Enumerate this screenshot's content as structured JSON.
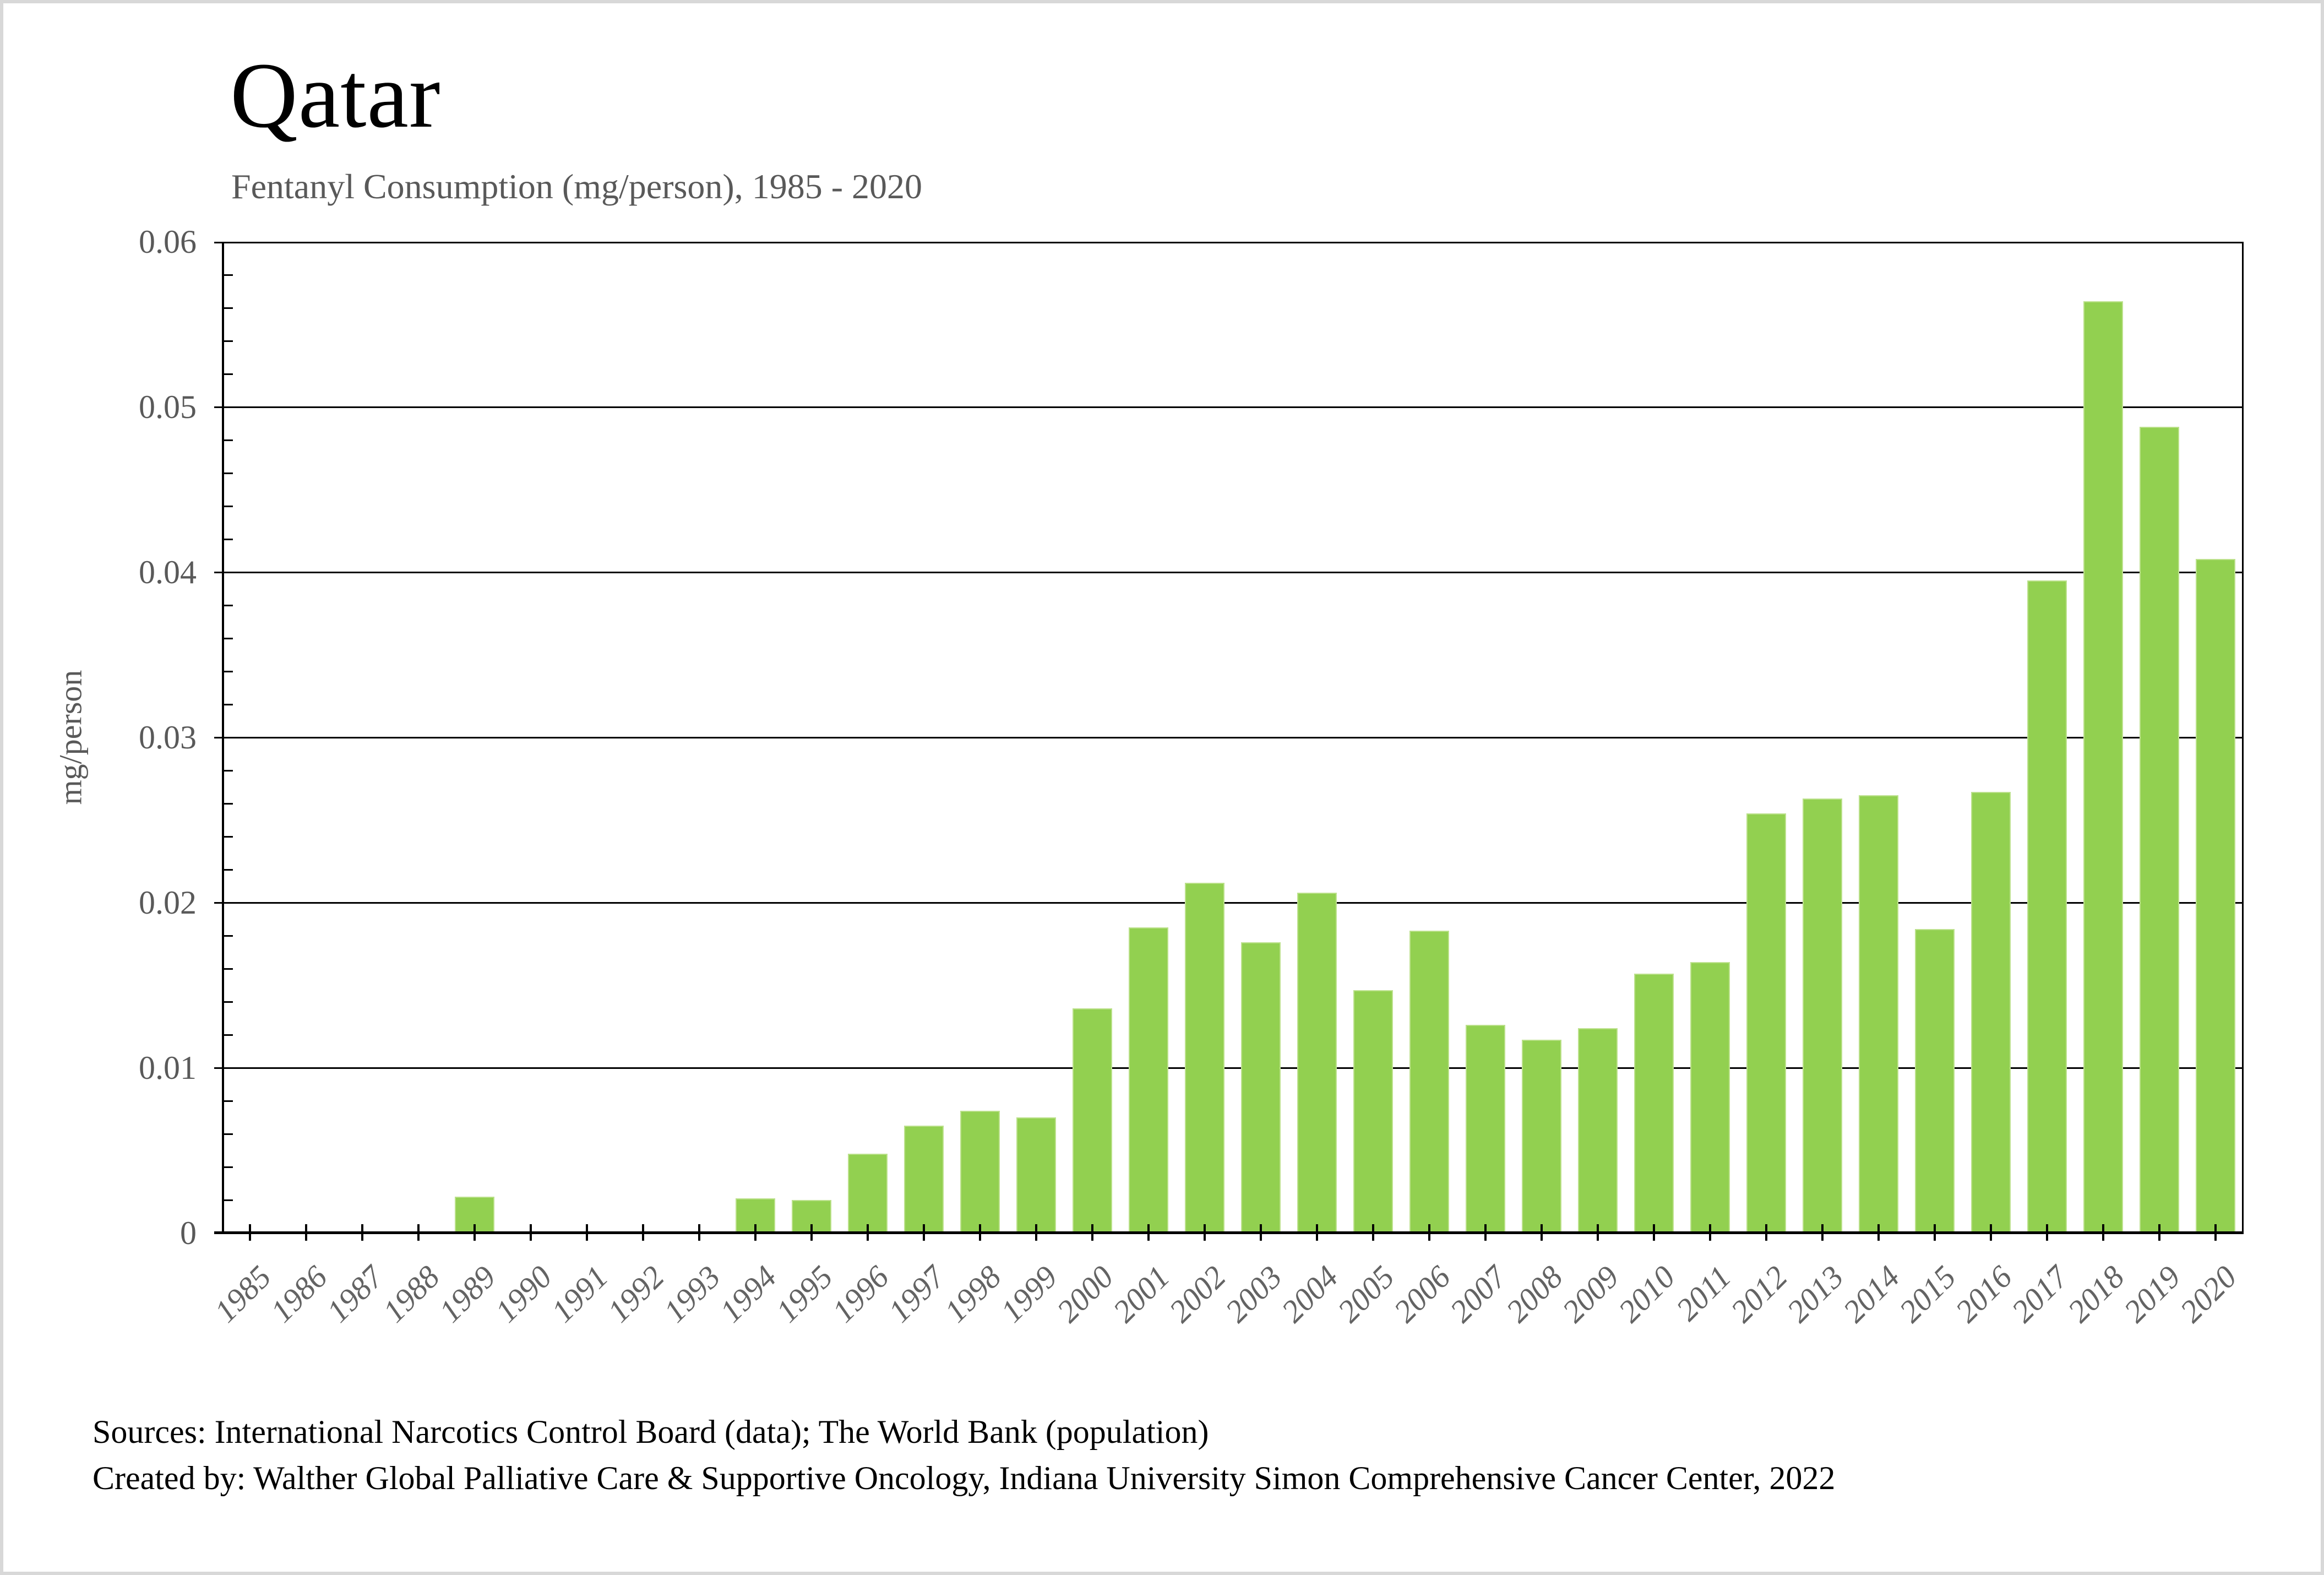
{
  "page": {
    "title": "Qatar",
    "subtitle": "Fentanyl Consumption (mg/person), 1985 - 2020",
    "y_axis_title": "mg/person",
    "footer": {
      "line1": "Sources: International Narcotics Control Board (data); The World Bank (population)",
      "line2": "Created by: Walther Global Palliative Care & Supportive Oncology, Indiana University Simon Comprehensive Cancer Center, 2022"
    }
  },
  "chart_data": {
    "type": "bar",
    "title": "Qatar",
    "subtitle": "Fentanyl Consumption (mg/person), 1985 - 2020",
    "xlabel": "",
    "ylabel": "mg/person",
    "ylim": [
      0,
      0.06
    ],
    "ytick_step": 0.01,
    "minor_tick_step": 0.002,
    "grid": true,
    "legend": false,
    "bar_color": "#92D050",
    "bar_edge_color": "#BCE18C",
    "categories": [
      "1985",
      "1986",
      "1987",
      "1988",
      "1989",
      "1990",
      "1991",
      "1992",
      "1993",
      "1994",
      "1995",
      "1996",
      "1997",
      "1998",
      "1999",
      "2000",
      "2001",
      "2002",
      "2003",
      "2004",
      "2005",
      "2006",
      "2007",
      "2008",
      "2009",
      "2010",
      "2011",
      "2012",
      "2013",
      "2014",
      "2015",
      "2016",
      "2017",
      "2018",
      "2019",
      "2020"
    ],
    "values": [
      0,
      0,
      0,
      0,
      0.0022,
      0,
      0,
      0,
      0,
      0.0021,
      0.002,
      0.0048,
      0.0065,
      0.0074,
      0.007,
      0.0136,
      0.0185,
      0.0212,
      0.0176,
      0.0206,
      0.0147,
      0.0183,
      0.0126,
      0.0117,
      0.0124,
      0.0157,
      0.0164,
      0.0254,
      0.0263,
      0.0265,
      0.0184,
      0.0267,
      0.0395,
      0.0564,
      0.0488,
      0.0408
    ]
  }
}
